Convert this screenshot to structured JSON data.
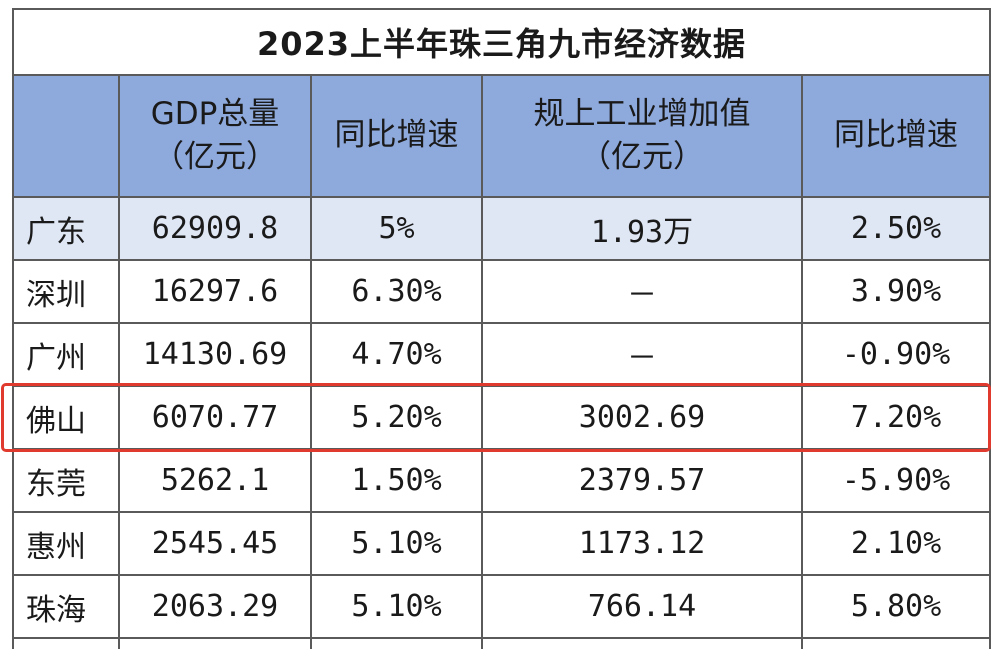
{
  "table": {
    "title": "2023上半年珠三角九市经济数据",
    "headers": [
      {
        "lines": [
          ""
        ]
      },
      {
        "lines": [
          "GDP总量",
          "（亿元）"
        ]
      },
      {
        "lines": [
          "同比增速"
        ]
      },
      {
        "lines": [
          "规上工业增加值",
          "（亿元）"
        ]
      },
      {
        "lines": [
          "同比增速"
        ]
      }
    ],
    "rows": [
      {
        "city": "广东",
        "gdp": "62909.8",
        "gdp_growth": "5%",
        "industry": "1.93万",
        "industry_growth": "2.50%"
      },
      {
        "city": "深圳",
        "gdp": "16297.6",
        "gdp_growth": "6.30%",
        "industry": "－",
        "industry_growth": "3.90%"
      },
      {
        "city": "广州",
        "gdp": "14130.69",
        "gdp_growth": "4.70%",
        "industry": "－",
        "industry_growth": "-0.90%"
      },
      {
        "city": "佛山",
        "gdp": "6070.77",
        "gdp_growth": "5.20%",
        "industry": "3002.69",
        "industry_growth": "7.20%"
      },
      {
        "city": "东莞",
        "gdp": "5262.1",
        "gdp_growth": "1.50%",
        "industry": "2379.57",
        "industry_growth": "-5.90%"
      },
      {
        "city": "惠州",
        "gdp": "2545.45",
        "gdp_growth": "5.10%",
        "industry": "1173.12",
        "industry_growth": "2.10%"
      },
      {
        "city": "珠海",
        "gdp": "2063.29",
        "gdp_growth": "5.10%",
        "industry": "766.14",
        "industry_growth": "5.80%"
      }
    ],
    "highlighted_row": "佛山"
  },
  "colors": {
    "header_bg": "#8ea9dc",
    "first_row_bg": "#dfe7f5",
    "highlight_border": "#e03a2f"
  }
}
